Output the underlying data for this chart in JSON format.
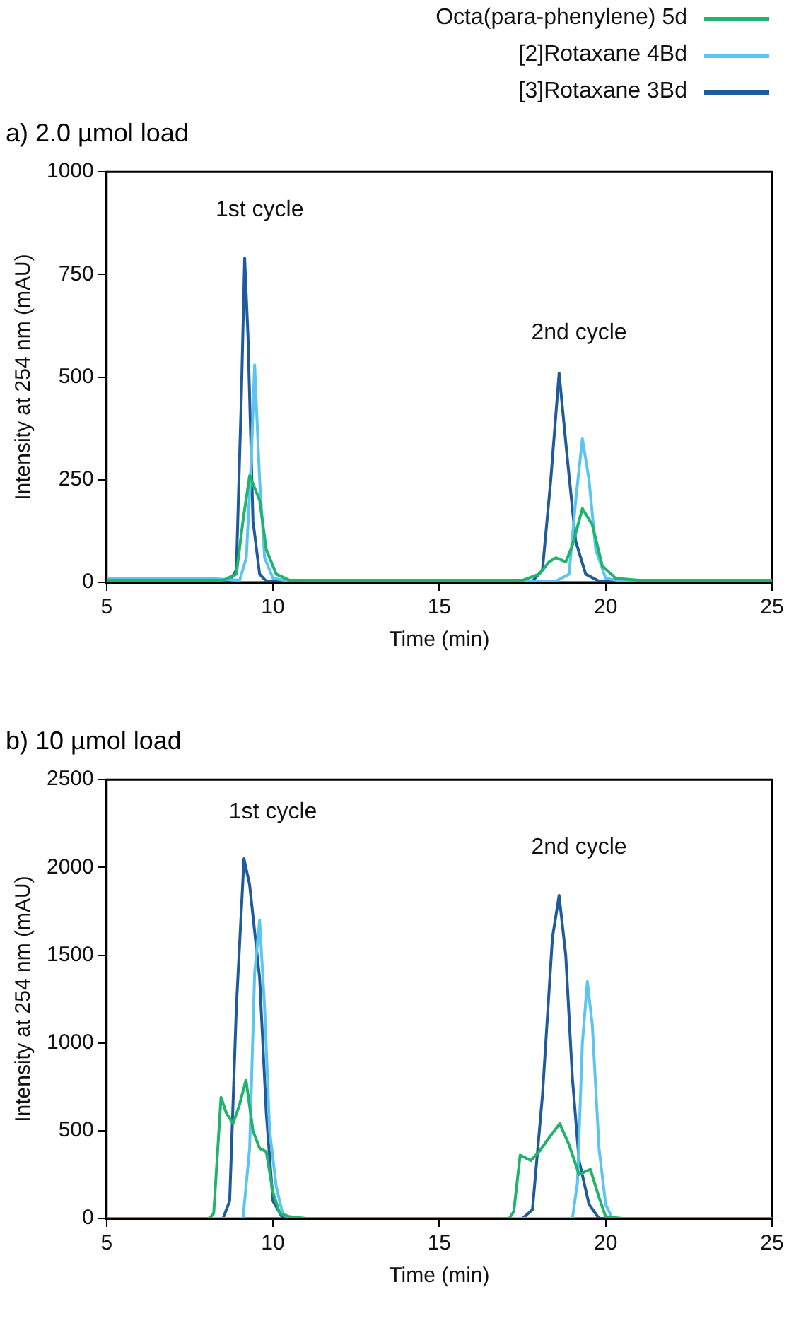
{
  "chart_data": [
    {
      "type": "line",
      "title": "a) 2.0 µmol load",
      "xlabel": "Time (min)",
      "ylabel": "Intensity at 254 nm (mAU)",
      "xlim": [
        5,
        25
      ],
      "xticks": [
        5,
        10,
        15,
        20,
        25
      ],
      "ylim": [
        0,
        1000
      ],
      "yticks": [
        0,
        250,
        500,
        750,
        1000
      ],
      "legend": "top right",
      "marker": "none",
      "annotations": [
        "1st cycle",
        "2nd cycle"
      ],
      "series": [
        {
          "name": "Octa(para-phenylene) 5d",
          "color": "#1fb36b",
          "x": [
            5,
            8.5,
            8.9,
            9.1,
            9.3,
            9.5,
            9.6,
            9.8,
            10.1,
            10.5,
            12,
            17.5,
            18,
            18.3,
            18.5,
            18.8,
            19.0,
            19.3,
            19.6,
            19.9,
            20.3,
            21,
            25
          ],
          "values": [
            5,
            5,
            20,
            150,
            260,
            220,
            200,
            80,
            20,
            5,
            5,
            5,
            20,
            50,
            60,
            50,
            90,
            180,
            140,
            40,
            10,
            5,
            5
          ]
        },
        {
          "name": "[2]Rotaxane 4Bd",
          "color": "#5bc5f0",
          "x": [
            5,
            8,
            9,
            9.2,
            9.35,
            9.45,
            9.6,
            9.75,
            10,
            10.5,
            18.5,
            18.9,
            19.1,
            19.3,
            19.5,
            19.7,
            20,
            20.5,
            25
          ],
          "values": [
            10,
            10,
            5,
            60,
            300,
            530,
            250,
            60,
            10,
            3,
            3,
            20,
            200,
            350,
            250,
            80,
            10,
            3,
            3
          ]
        },
        {
          "name": "[3]Rotaxane 3Bd",
          "color": "#1f5a9a",
          "x": [
            5,
            8.7,
            8.9,
            9.05,
            9.15,
            9.25,
            9.4,
            9.6,
            9.8,
            17.8,
            18.1,
            18.35,
            18.6,
            18.85,
            19.1,
            19.4,
            19.8,
            25
          ],
          "values": [
            3,
            3,
            30,
            450,
            790,
            600,
            150,
            20,
            3,
            3,
            30,
            250,
            510,
            300,
            100,
            20,
            3,
            3
          ]
        }
      ]
    },
    {
      "type": "line",
      "title": "b) 10 µmol load",
      "xlabel": "Time (min)",
      "ylabel": "Intensity at 254 nm (mAU)",
      "xlim": [
        5,
        25
      ],
      "xticks": [
        5,
        10,
        15,
        20,
        25
      ],
      "ylim": [
        0,
        2500
      ],
      "yticks": [
        0,
        500,
        1000,
        1500,
        2000,
        2500
      ],
      "marker": "none",
      "annotations": [
        "1st cycle",
        "2nd cycle"
      ],
      "series": [
        {
          "color": "#1fb36b",
          "x": [
            5,
            8.1,
            8.22,
            8.44,
            8.6,
            8.8,
            9.0,
            9.19,
            9.4,
            9.6,
            9.8,
            10.0,
            10.2,
            10.5,
            11,
            17.1,
            17.24,
            17.43,
            17.75,
            18.0,
            18.3,
            18.62,
            18.9,
            19.2,
            19.54,
            19.8,
            20.0,
            20.5,
            25
          ],
          "values": [
            0,
            0,
            30,
            690,
            600,
            540,
            650,
            790,
            500,
            400,
            380,
            150,
            30,
            10,
            0,
            0,
            40,
            360,
            330,
            380,
            460,
            540,
            420,
            250,
            280,
            120,
            10,
            0,
            0
          ]
        },
        {
          "color": "#5bc5f0",
          "x": [
            5,
            9.1,
            9.3,
            9.45,
            9.6,
            9.75,
            9.9,
            10.1,
            10.3,
            10.6,
            19.0,
            19.15,
            19.3,
            19.45,
            19.6,
            19.8,
            20.0,
            20.2,
            25
          ],
          "values": [
            0,
            0,
            400,
            1400,
            1700,
            1200,
            500,
            180,
            20,
            0,
            0,
            200,
            1000,
            1350,
            1100,
            400,
            80,
            0,
            0
          ]
        },
        {
          "color": "#1f5a9a",
          "x": [
            5,
            8.5,
            8.7,
            8.9,
            9.13,
            9.3,
            9.6,
            9.8,
            10.0,
            10.3,
            17.5,
            17.8,
            18.1,
            18.4,
            18.6,
            18.8,
            19.0,
            19.2,
            19.5,
            19.8,
            25
          ],
          "values": [
            0,
            0,
            100,
            1200,
            2050,
            1900,
            1370,
            600,
            100,
            0,
            0,
            50,
            700,
            1600,
            1840,
            1500,
            800,
            330,
            80,
            0,
            0
          ]
        }
      ]
    }
  ]
}
